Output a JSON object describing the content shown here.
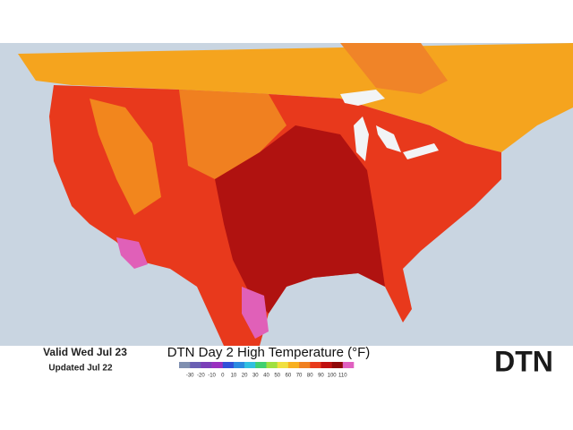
{
  "header": {
    "valid": "Valid Wed Jul 23",
    "updated": "Updated Jul 22"
  },
  "legend": {
    "title": "DTN Day 2 High Temperature (°F)",
    "ticks": [
      -30,
      -20,
      -10,
      0,
      10,
      20,
      30,
      40,
      50,
      60,
      70,
      80,
      90,
      100,
      110
    ],
    "colors": [
      "#7f8fb0",
      "#6a5fb3",
      "#7a3fb8",
      "#9a2fc0",
      "#3050d8",
      "#2a8ae0",
      "#30c0e0",
      "#40d070",
      "#a0e040",
      "#f0e040",
      "#f8b020",
      "#f08020",
      "#e83a1c",
      "#c01010",
      "#900808",
      "#e060c0"
    ]
  },
  "logo": "DTN"
}
